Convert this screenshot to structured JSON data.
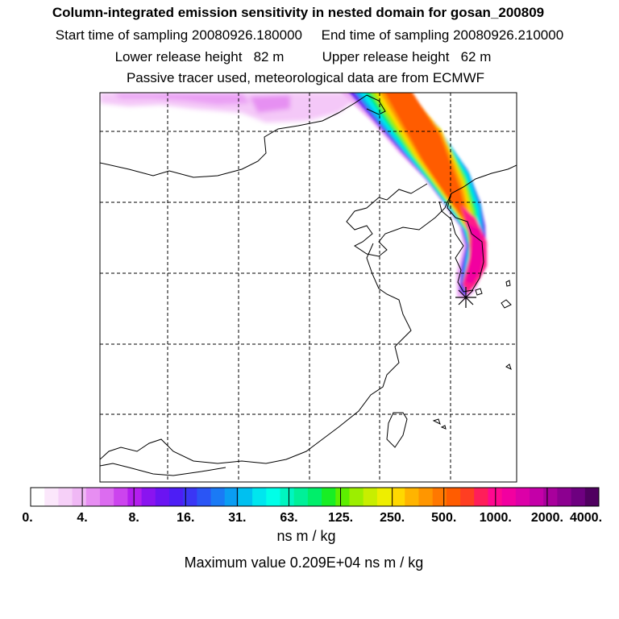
{
  "header": {
    "title": "Column-integrated emission sensitivity in nested domain for gosan_200809",
    "sampling": "Start time of sampling 20080926.180000     End time of sampling 20080926.210000",
    "release": "Lower release height   82 m          Upper release height   62 m",
    "tracer": "Passive tracer used, meteorological data are from ECMWF"
  },
  "colorbar": {
    "tick_labels": [
      "0.",
      "4.",
      "8.",
      "16.",
      "31.",
      "63.",
      "125.",
      "250.",
      "500.",
      "1000.",
      "2000.",
      "4000."
    ],
    "colors": [
      "#ffffff",
      "#fbe7fb",
      "#f6d0f8",
      "#f0b8f5",
      "#e78ef2",
      "#dc6cf0",
      "#cc44ee",
      "#b41eee",
      "#8a14f0",
      "#6b14f2",
      "#4d1ef5",
      "#3a36f5",
      "#2a55f5",
      "#1a7af5",
      "#0a9df3",
      "#00c0f0",
      "#00e6ee",
      "#00ffe8",
      "#00f5c0",
      "#00f098",
      "#00ee6a",
      "#18ee24",
      "#5cee00",
      "#9cee00",
      "#c8ee00",
      "#eeee00",
      "#ffd800",
      "#ffb400",
      "#ff9600",
      "#ff7800",
      "#ff5c00",
      "#ff3e22",
      "#ff1e5a",
      "#ff0890",
      "#f200a0",
      "#dc00a8",
      "#c400a8",
      "#a8009c",
      "#8c0090",
      "#6e0080",
      "#500060"
    ],
    "unit": "ns m / kg",
    "max_label": "Maximum value  0.209E+04 ns m / kg"
  },
  "map": {
    "receptor": "Gosan",
    "grid": "dashed lat/lon grid"
  }
}
